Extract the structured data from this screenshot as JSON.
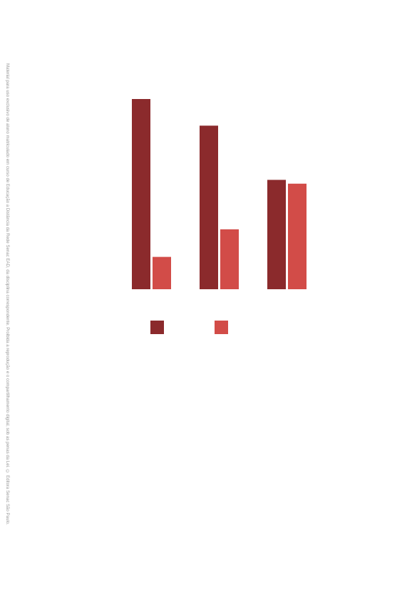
{
  "side_notice": "Material para uso exclusivo de aluno matriculado em curso de Educação a Distância da Rede Senac EAD, da disciplina correspondente. Proibida a reprodução e o compartilhamento digital, sob as penas da Lei. © Editora Senac São Paulo.",
  "colors": {
    "series_dark": "#8b2a2c",
    "series_light": "#d24c48"
  },
  "chart_data": {
    "type": "bar",
    "title": "",
    "xlabel": "",
    "ylabel": "",
    "ylim": [
      0,
      100
    ],
    "grid": false,
    "legend_position": "bottom",
    "categories": [
      "",
      "",
      ""
    ],
    "series": [
      {
        "values": [
          100,
          86,
          57.5
        ]
      },
      {
        "values": [
          17,
          31.5,
          55.5
        ]
      }
    ]
  }
}
